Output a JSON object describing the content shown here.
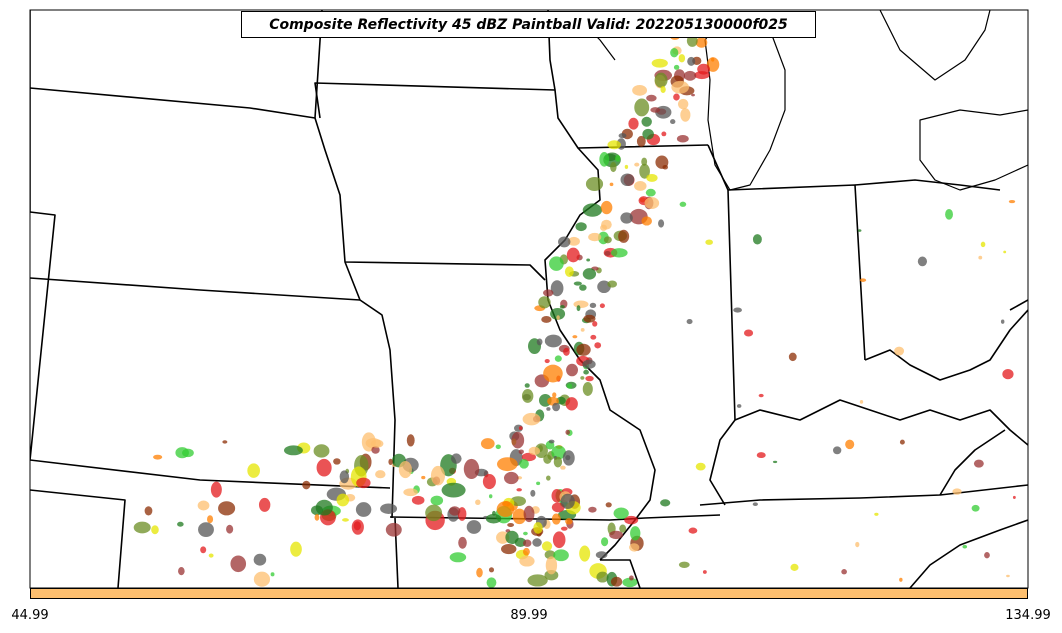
{
  "title": "Composite Reflectivity 45 dBZ Paintball Valid: 202205130000f025",
  "colorbar": {
    "color": "#fdbf6f",
    "tick_labels": [
      "44.99",
      "89.99",
      "134.99"
    ]
  },
  "palette": [
    "#e31a1c",
    "#33cc33",
    "#ff7f00",
    "#8c2d04",
    "#6b8e23",
    "#1f7a1f",
    "#993333",
    "#fdbf6f",
    "#e6e600",
    "#555555"
  ],
  "map": {
    "background": "#ffffff",
    "boundary_color": "#000000",
    "features": [
      "state-boundaries",
      "coastlines",
      "great-lakes"
    ]
  }
}
